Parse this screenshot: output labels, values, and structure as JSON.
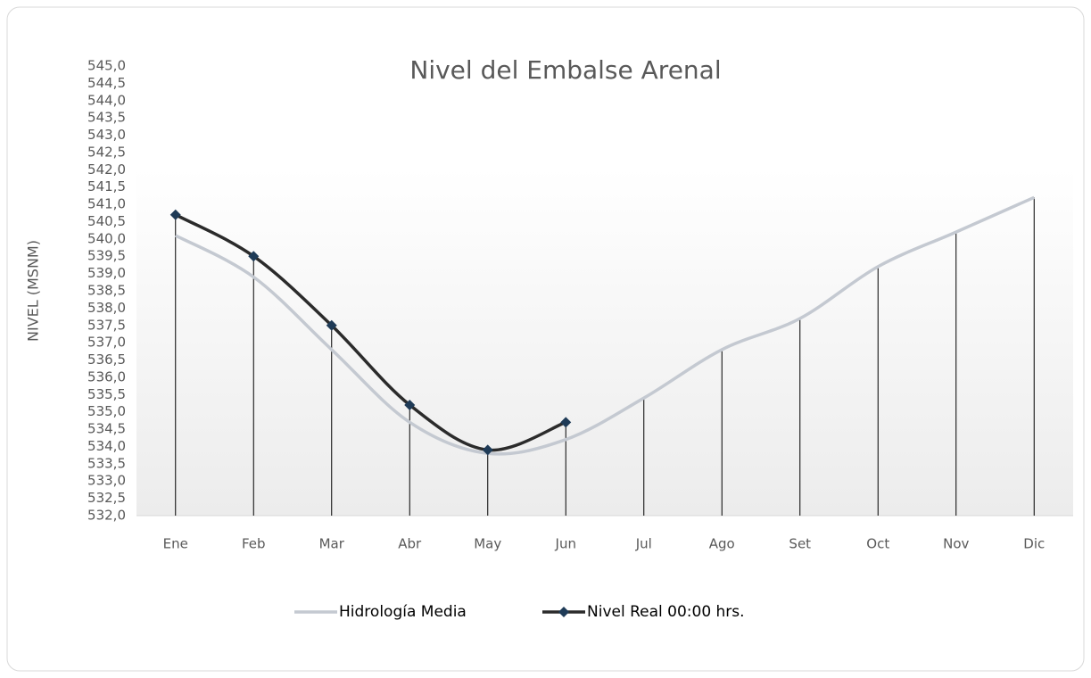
{
  "chart_data": {
    "type": "line",
    "title": "Nivel del Embalse Arenal",
    "y_label": "NIVEL (MSNM)",
    "categories": [
      "Ene",
      "Feb",
      "Mar",
      "Abr",
      "May",
      "Jun",
      "Jul",
      "Ago",
      "Set",
      "Oct",
      "Nov",
      "Dic"
    ],
    "series": [
      {
        "name": "Hidrología Media",
        "color": "#c4c9d1",
        "values": [
          540.1,
          538.9,
          536.8,
          534.7,
          533.8,
          534.2,
          535.4,
          536.8,
          537.7,
          539.2,
          540.2,
          541.2
        ]
      },
      {
        "name": "Nivel Real 00:00 hrs.",
        "color": "#2b2b2b",
        "marker_color": "#1f3b57",
        "values": [
          540.7,
          539.5,
          537.5,
          535.2,
          533.9,
          534.7,
          null,
          null,
          null,
          null,
          null,
          null
        ]
      }
    ],
    "ylim": [
      532,
      545
    ],
    "yticks": [
      {
        "value": 532,
        "label": "532,0"
      },
      {
        "value": 532.5,
        "label": "532,5"
      },
      {
        "value": 533,
        "label": "533,0"
      },
      {
        "value": 533.5,
        "label": "533,5"
      },
      {
        "value": 534,
        "label": "534,0"
      },
      {
        "value": 534.5,
        "label": "534,5"
      },
      {
        "value": 535,
        "label": "535,0"
      },
      {
        "value": 535.5,
        "label": "535,5"
      },
      {
        "value": 536,
        "label": "536,0"
      },
      {
        "value": 536.5,
        "label": "536,5"
      },
      {
        "value": 537,
        "label": "537,0"
      },
      {
        "value": 537.5,
        "label": "537,5"
      },
      {
        "value": 538,
        "label": "538,0"
      },
      {
        "value": 538.5,
        "label": "538,5"
      },
      {
        "value": 539,
        "label": "539,0"
      },
      {
        "value": 539.5,
        "label": "539,5"
      },
      {
        "value": 540,
        "label": "540,0"
      },
      {
        "value": 540.5,
        "label": "540,5"
      },
      {
        "value": 541,
        "label": "541,0"
      },
      {
        "value": 541.5,
        "label": "541,5"
      },
      {
        "value": 542,
        "label": "542,0"
      },
      {
        "value": 542.5,
        "label": "542,5"
      },
      {
        "value": 543,
        "label": "543,0"
      },
      {
        "value": 543.5,
        "label": "543,5"
      },
      {
        "value": 544,
        "label": "544,0"
      },
      {
        "value": 544.5,
        "label": "544,5"
      },
      {
        "value": 545,
        "label": "545,0"
      }
    ],
    "grid": false,
    "drop_lines": true,
    "legend": "bottom"
  }
}
